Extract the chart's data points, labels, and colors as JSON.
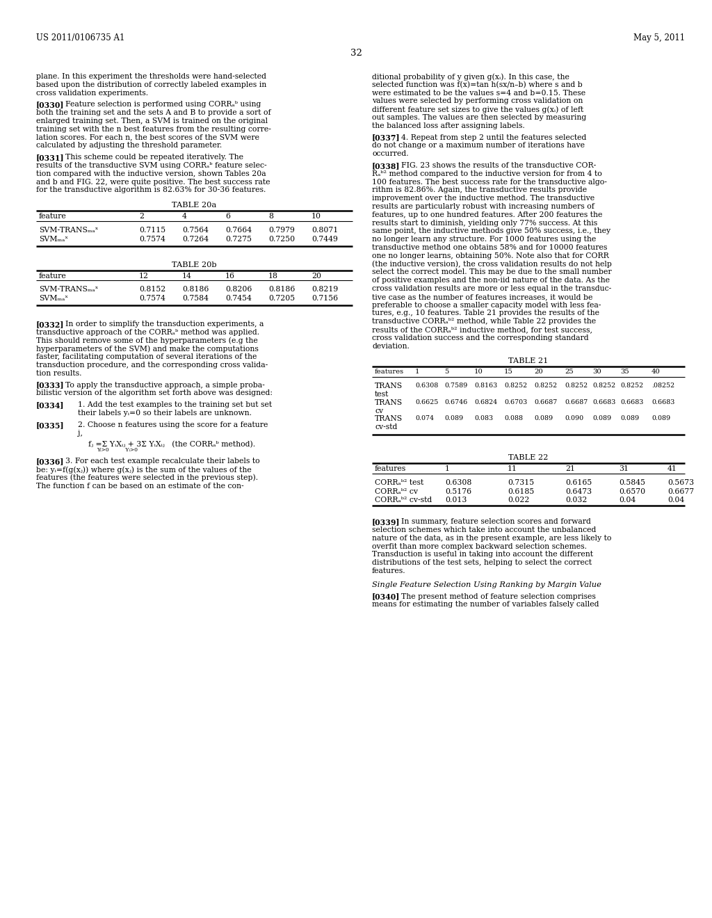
{
  "bg_color": "#ffffff",
  "header_left": "US 2011/0106735 A1",
  "header_right": "May 5, 2011",
  "page_number": "32"
}
